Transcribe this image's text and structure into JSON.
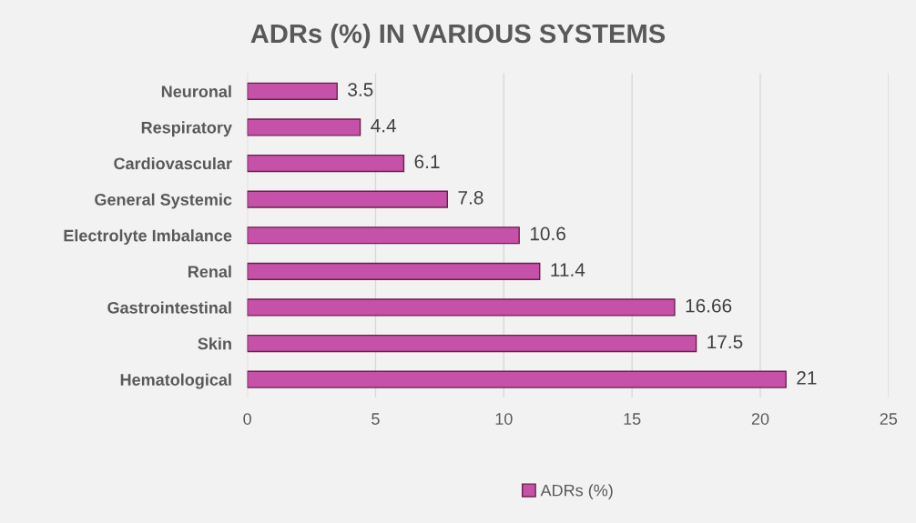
{
  "chart_data": {
    "type": "bar",
    "orientation": "horizontal",
    "title": "ADRs (%) IN VARIOUS SYSTEMS",
    "categories": [
      "Neuronal",
      "Respiratory",
      "Cardiovascular",
      "General Systemic",
      "Electrolyte Imbalance",
      "Renal",
      "Gastrointestinal",
      "Skin",
      "Hematological"
    ],
    "series": [
      {
        "name": "ADRs (%)",
        "color": "#c552a8",
        "values": [
          3.5,
          4.4,
          6.1,
          7.8,
          10.6,
          11.4,
          16.66,
          17.5,
          21
        ]
      }
    ],
    "xlim": [
      0,
      25
    ],
    "xticks": [
      0,
      5,
      10,
      15,
      20,
      25
    ],
    "grid": "x",
    "legend": "bottom",
    "data_labels": true
  }
}
